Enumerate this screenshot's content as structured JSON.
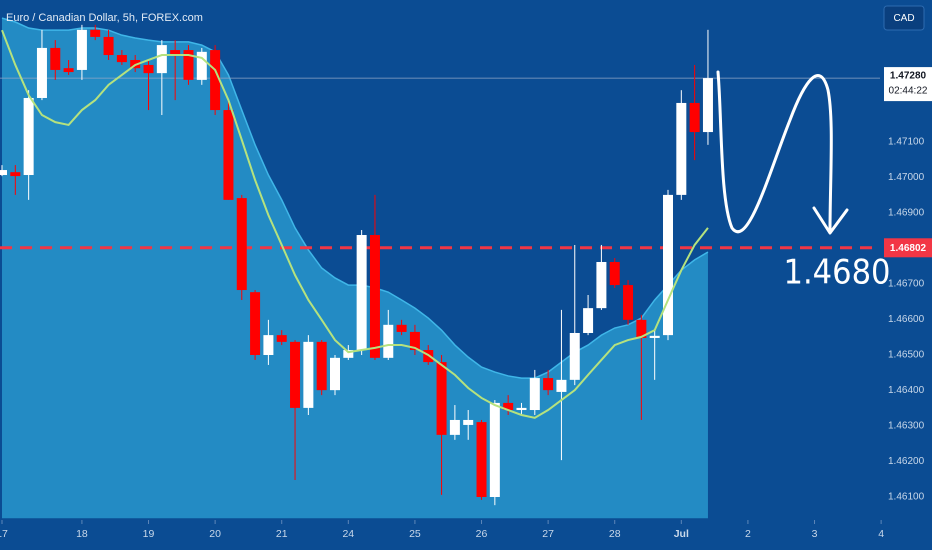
{
  "chart_data": {
    "type": "candlestick",
    "title": "Euro / Canadian Dollar, 5h, FOREX.com",
    "currency_button": "CAD",
    "up_color": "#ffffff",
    "down_color": "#ff0000",
    "categories": [
      "17",
      null,
      null,
      null,
      null,
      null,
      "18",
      null,
      null,
      null,
      null,
      "19",
      null,
      null,
      null,
      null,
      "20",
      null,
      null,
      null,
      null,
      "21",
      null,
      null,
      null,
      null,
      "24",
      null,
      null,
      null,
      null,
      "25",
      null,
      null,
      null,
      null,
      "26",
      null,
      null,
      null,
      null,
      "27",
      null,
      null,
      null,
      null,
      "28",
      null,
      null,
      null,
      null,
      "Jul",
      null,
      null,
      null,
      null,
      "2",
      null,
      null,
      null,
      null,
      "3",
      null,
      null,
      null,
      null,
      "4"
    ],
    "open": [
      1.47007,
      1.47015,
      1.47007,
      1.47224,
      1.47365,
      1.47308,
      1.47303,
      1.47416,
      1.47396,
      1.47345,
      1.47331,
      1.47317,
      1.47294,
      1.47359,
      1.47359,
      1.47275,
      1.47359,
      1.4719,
      1.46942,
      1.46677,
      1.465,
      1.46556,
      1.46537,
      1.46351,
      1.46537,
      1.46401,
      1.46492,
      1.46514,
      1.46838,
      1.46492,
      1.46585,
      1.46565,
      1.46514,
      1.4648,
      1.46275,
      1.46303,
      1.46311,
      1.461,
      1.46365,
      1.46345,
      1.46345,
      1.46435,
      1.46396,
      1.4643,
      1.46562,
      1.46632,
      1.46762,
      1.46697,
      1.46599,
      1.46548,
      1.46556,
      1.46951,
      1.4721,
      1.47128,
      null,
      null,
      null,
      null,
      null,
      null,
      null,
      null,
      null,
      null,
      null,
      null,
      null
    ],
    "high": [
      1.47035,
      1.47035,
      1.47246,
      1.47416,
      1.47387,
      1.47331,
      1.4743,
      1.4743,
      1.47416,
      1.47359,
      1.47345,
      1.47331,
      1.47387,
      1.47387,
      1.47373,
      1.47365,
      1.47373,
      1.47218,
      1.46951,
      1.46683,
      1.46599,
      1.4657,
      1.46542,
      1.46556,
      1.46542,
      1.465,
      1.46528,
      1.46852,
      1.46951,
      1.46627,
      1.46599,
      1.46585,
      1.46528,
      1.465,
      1.46359,
      1.46345,
      1.46317,
      1.46373,
      1.46387,
      1.46365,
      1.46458,
      1.46458,
      1.46627,
      1.4681,
      1.46669,
      1.4681,
      1.46773,
      1.46711,
      1.46613,
      1.4657,
      1.46965,
      1.47246,
      1.47317,
      1.47416,
      null,
      null,
      null,
      null,
      null,
      null,
      null,
      null,
      null,
      null,
      null,
      null,
      null
    ],
    "low": [
      1.47004,
      1.46951,
      1.46937,
      1.47218,
      1.47275,
      1.47289,
      1.47275,
      1.47387,
      1.47331,
      1.47317,
      1.47297,
      1.4719,
      1.47176,
      1.47218,
      1.47261,
      1.47261,
      1.47176,
      1.46937,
      1.46655,
      1.46486,
      1.46472,
      1.46528,
      1.46148,
      1.46331,
      1.46387,
      1.46387,
      1.46486,
      1.465,
      1.46486,
      1.46486,
      1.46556,
      1.465,
      1.46472,
      1.46106,
      1.46261,
      1.46261,
      1.46092,
      1.46077,
      1.46331,
      1.46331,
      1.46331,
      1.46387,
      1.46204,
      1.46415,
      1.46556,
      1.46627,
      1.46689,
      1.46585,
      1.46317,
      1.4643,
      1.46542,
      1.46937,
      1.47049,
      1.47092,
      null,
      null,
      null,
      null,
      null,
      null,
      null,
      null,
      null,
      null,
      null,
      null,
      null
    ],
    "close": [
      1.47021,
      1.47004,
      1.47224,
      1.47365,
      1.47303,
      1.47297,
      1.47416,
      1.47396,
      1.47345,
      1.47325,
      1.47308,
      1.47294,
      1.47373,
      1.47345,
      1.47275,
      1.47354,
      1.4719,
      1.46937,
      1.46683,
      1.465,
      1.46556,
      1.46537,
      1.46351,
      1.46537,
      1.46401,
      1.46492,
      1.46514,
      1.46838,
      1.46492,
      1.46585,
      1.46565,
      1.46514,
      1.4648,
      1.46275,
      1.46317,
      1.46317,
      1.461,
      1.46365,
      1.46345,
      1.46351,
      1.46435,
      1.46401,
      1.4643,
      1.46562,
      1.46632,
      1.46762,
      1.46697,
      1.46599,
      1.46548,
      1.46554,
      1.46951,
      1.4721,
      1.47128,
      1.4728,
      null,
      null,
      null,
      null,
      null,
      null,
      null,
      null,
      null,
      null,
      null,
      null,
      null
    ],
    "area": {
      "color": "#3fb6e8",
      "fill": "#238bc4",
      "values": [
        1.47449,
        1.47438,
        1.47421,
        1.47415,
        1.47415,
        1.47415,
        1.47421,
        1.47421,
        1.47415,
        1.47401,
        1.47393,
        1.47387,
        1.47382,
        1.47382,
        1.47382,
        1.47373,
        1.47354,
        1.47289,
        1.4719,
        1.47092,
        1.47007,
        1.46937,
        1.46858,
        1.46796,
        1.46745,
        1.46717,
        1.46697,
        1.46697,
        1.46689,
        1.46677,
        1.46655,
        1.46632,
        1.46604,
        1.4657,
        1.46528,
        1.46494,
        1.46466,
        1.46452,
        1.46441,
        1.46435,
        1.46435,
        1.46452,
        1.4648,
        1.46508,
        1.46528,
        1.46556,
        1.46576,
        1.46585,
        1.46604,
        1.46655,
        1.46697,
        1.46739,
        1.46768,
        1.4679,
        null,
        null,
        null,
        null,
        null,
        null,
        null,
        null,
        null,
        null,
        null,
        null,
        null
      ]
    },
    "line": {
      "color": "#b5e27e",
      "values": [
        1.47415,
        1.47317,
        1.47232,
        1.47176,
        1.47156,
        1.47148,
        1.4719,
        1.47218,
        1.47261,
        1.47289,
        1.47317,
        1.47331,
        1.47345,
        1.47345,
        1.47345,
        1.47337,
        1.47303,
        1.47218,
        1.47106,
        1.46993,
        1.46894,
        1.4681,
        1.46725,
        1.46655,
        1.46599,
        1.46542,
        1.46508,
        1.46514,
        1.4652,
        1.46528,
        1.46528,
        1.4652,
        1.465,
        1.46472,
        1.46444,
        1.46407,
        1.46379,
        1.46359,
        1.46345,
        1.46331,
        1.46323,
        1.46345,
        1.46373,
        1.46401,
        1.46444,
        1.46486,
        1.46528,
        1.46542,
        1.46551,
        1.4657,
        1.46655,
        1.46739,
        1.4681,
        1.46858,
        null,
        null,
        null,
        null,
        null,
        null,
        null,
        null,
        null,
        null,
        null,
        null,
        null
      ]
    },
    "ylim": [
      1.4604,
      1.475
    ],
    "yticks": [
      {
        "value": 1.461,
        "label": "1.46100"
      },
      {
        "value": 1.462,
        "label": "1.46200"
      },
      {
        "value": 1.463,
        "label": "1.46300"
      },
      {
        "value": 1.464,
        "label": "1.46400"
      },
      {
        "value": 1.465,
        "label": "1.46500"
      },
      {
        "value": 1.466,
        "label": "1.46600"
      },
      {
        "value": 1.467,
        "label": "1.46700"
      },
      {
        "value": 1.469,
        "label": "1.46900"
      },
      {
        "value": 1.47,
        "label": "1.47000"
      },
      {
        "value": 1.471,
        "label": "1.47100"
      }
    ],
    "reference_line": {
      "value": 1.46802,
      "label": "1.46802",
      "color": "#f23645"
    },
    "last_price": {
      "value": 1.4728,
      "label": "1.47280",
      "countdown": "02:44:22"
    },
    "annotation": "1.4680"
  }
}
